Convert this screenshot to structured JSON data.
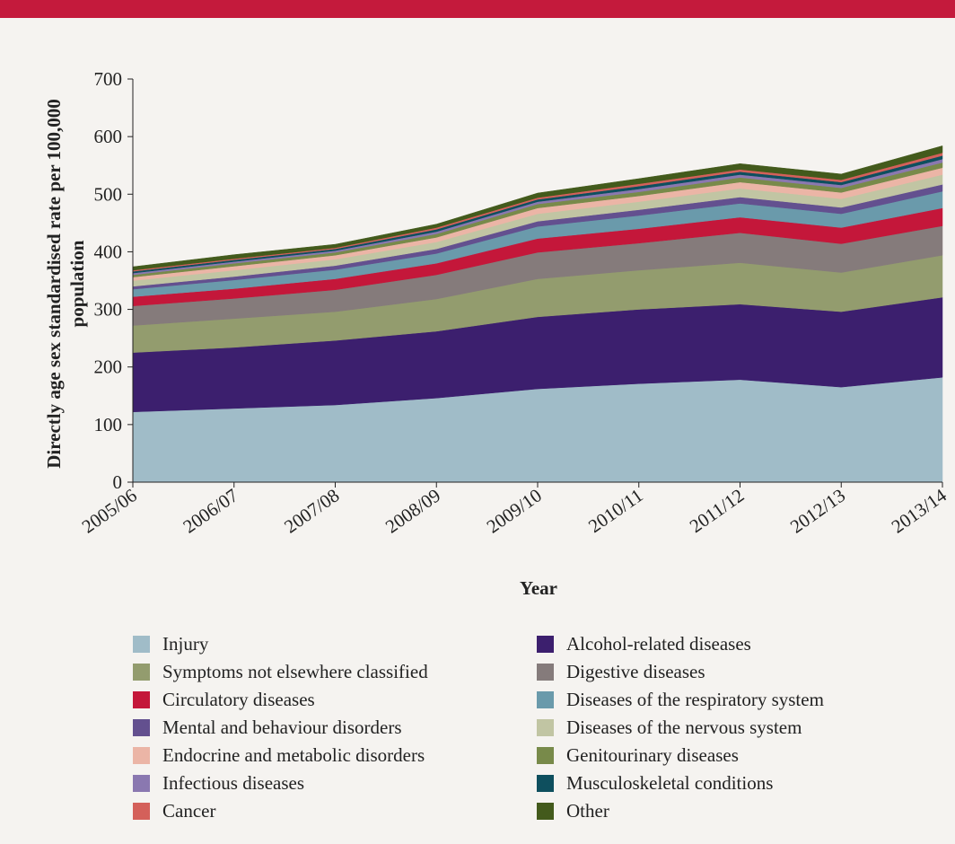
{
  "chart_data": {
    "type": "stacked_area",
    "x_label": "Year",
    "y_label": "Directly age sex standardised rate per 100,000 population",
    "categories": [
      "2005/06",
      "2006/07",
      "2007/08",
      "2008/09",
      "2009/10",
      "2010/11",
      "2011/12",
      "2012/13",
      "2013/14"
    ],
    "ylim": [
      0,
      700
    ],
    "yticks": [
      0,
      100,
      200,
      300,
      400,
      500,
      600,
      700
    ],
    "series": [
      {
        "name": "Injury",
        "color": "#a0bcc8",
        "values": [
          122,
          128,
          134,
          146,
          162,
          171,
          178,
          165,
          182
        ]
      },
      {
        "name": "Alcohol-related diseases",
        "color": "#3c1f6e",
        "values": [
          103,
          106,
          112,
          116,
          125,
          129,
          131,
          131,
          139
        ]
      },
      {
        "name": "Symptoms not elsewhere classified",
        "color": "#939c6e",
        "values": [
          47,
          50,
          50,
          56,
          66,
          68,
          72,
          68,
          73
        ]
      },
      {
        "name": "Digestive diseases",
        "color": "#857b7b",
        "values": [
          34,
          35,
          38,
          42,
          46,
          47,
          52,
          50,
          51
        ]
      },
      {
        "name": "Circulatory diseases",
        "color": "#c4173a",
        "values": [
          16,
          17,
          19,
          20,
          24,
          25,
          27,
          28,
          31
        ]
      },
      {
        "name": "Diseases of the respiratory system",
        "color": "#6a9aab",
        "values": [
          13,
          15,
          16,
          17,
          21,
          23,
          24,
          24,
          29
        ]
      },
      {
        "name": "Mental and behaviour disorders",
        "color": "#63508f",
        "values": [
          5,
          6,
          7,
          8,
          9,
          10,
          11,
          11,
          12
        ]
      },
      {
        "name": "Diseases of the nervous system",
        "color": "#c1c5a3",
        "values": [
          10,
          11,
          11,
          12,
          13,
          14,
          15,
          15,
          17
        ]
      },
      {
        "name": "Endocrine and metabolic disorders",
        "color": "#ebb5a6",
        "values": [
          6,
          7,
          7,
          8,
          10,
          10,
          11,
          11,
          12
        ]
      },
      {
        "name": "Genitourinary diseases",
        "color": "#788a4a",
        "values": [
          4,
          5,
          5,
          6,
          7,
          7,
          8,
          8,
          9
        ]
      },
      {
        "name": "Infectious diseases",
        "color": "#8a78b0",
        "values": [
          3,
          3,
          3,
          4,
          4,
          5,
          5,
          5,
          6
        ]
      },
      {
        "name": "Musculoskeletal conditions",
        "color": "#0e4f5e",
        "values": [
          3,
          3,
          3,
          4,
          4,
          5,
          5,
          5,
          6
        ]
      },
      {
        "name": "Cancer",
        "color": "#d4605a",
        "values": [
          2,
          2,
          2,
          3,
          3,
          4,
          4,
          4,
          5
        ]
      },
      {
        "name": "Other",
        "color": "#435a1c",
        "values": [
          6,
          7,
          6,
          6,
          8,
          9,
          10,
          10,
          12
        ]
      }
    ]
  }
}
